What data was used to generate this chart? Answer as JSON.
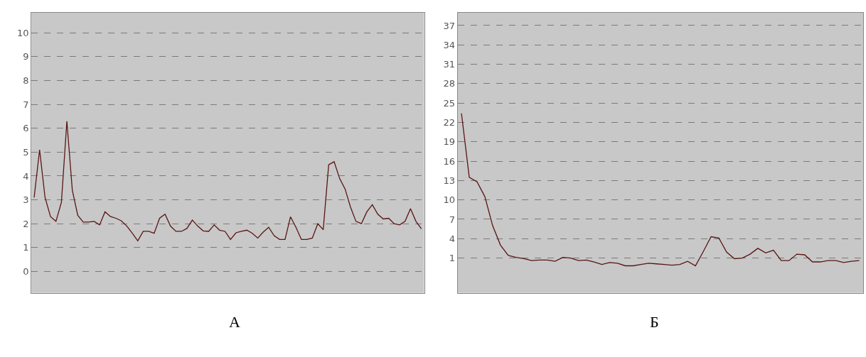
{
  "chart_data": [
    {
      "type": "line",
      "title": "А",
      "color": "#5a1414",
      "ylim": [
        -0.9,
        10.85
      ],
      "yticks": [
        0,
        1,
        2,
        3,
        4,
        5,
        6,
        7,
        8,
        9,
        10
      ],
      "grid": "y",
      "tick_labels": "y",
      "categories": [
        null,
        null,
        null,
        null,
        null,
        null,
        null,
        null,
        null,
        null,
        null,
        null,
        null,
        null,
        null,
        null,
        null,
        null,
        null,
        null,
        null,
        null,
        null,
        null,
        null,
        null,
        null,
        null,
        null,
        null,
        null,
        null,
        null,
        null,
        null,
        null,
        null,
        null,
        null,
        null,
        null,
        null,
        null,
        null,
        null,
        null,
        null,
        null,
        null,
        null,
        null,
        null,
        null,
        null,
        null,
        null,
        null,
        null,
        null,
        null,
        null,
        null,
        null,
        null,
        null,
        null,
        null,
        null,
        null,
        null,
        null,
        null
      ],
      "values": [
        3.1,
        5.1,
        3.1,
        2.3,
        2.1,
        2.9,
        6.3,
        3.4,
        2.35,
        2.07,
        2.07,
        2.1,
        1.95,
        2.5,
        2.3,
        2.23,
        2.12,
        1.9,
        1.6,
        1.28,
        1.68,
        1.68,
        1.6,
        2.23,
        2.4,
        1.9,
        1.68,
        1.68,
        1.8,
        2.15,
        1.9,
        1.7,
        1.68,
        1.95,
        1.73,
        1.68,
        1.34,
        1.62,
        1.68,
        1.73,
        1.6,
        1.4,
        1.65,
        1.85,
        1.5,
        1.34,
        1.34,
        2.29,
        1.85,
        1.34,
        1.34,
        1.4,
        2.0,
        1.75,
        4.47,
        4.6,
        3.9,
        3.46,
        2.7,
        2.1,
        2.0,
        2.5,
        2.8,
        2.4,
        2.2,
        2.23,
        2.0,
        1.95,
        2.1,
        2.63,
        2.1,
        1.79
      ]
    },
    {
      "type": "line",
      "title": "Б",
      "color": "#5a1414",
      "ylim": [
        -4.4,
        39
      ],
      "yticks": [
        1,
        4,
        7,
        10,
        13,
        16,
        19,
        22,
        25,
        28,
        31,
        34,
        37
      ],
      "grid": "y",
      "tick_labels": "y",
      "categories": [
        null,
        null,
        null,
        null,
        null,
        null,
        null,
        null,
        null,
        null,
        null,
        null,
        null,
        null,
        null,
        null,
        null,
        null,
        null,
        null,
        null,
        null,
        null,
        null,
        null,
        null,
        null,
        null,
        null,
        null,
        null,
        null,
        null,
        null,
        null,
        null,
        null,
        null,
        null,
        null,
        null,
        null,
        null,
        null,
        null,
        null,
        null,
        null,
        null,
        null,
        null,
        null
      ],
      "values": [
        23.4,
        13.5,
        12.8,
        10.5,
        6.0,
        3.0,
        1.4,
        1.1,
        0.9,
        0.6,
        0.7,
        0.7,
        0.5,
        1.1,
        1.0,
        0.6,
        0.7,
        0.4,
        0.0,
        0.3,
        0.2,
        -0.2,
        -0.2,
        0.0,
        0.2,
        0.1,
        0.0,
        -0.1,
        0.0,
        0.5,
        -0.2,
        2.0,
        4.3,
        4.1,
        1.9,
        0.9,
        1.0,
        1.6,
        2.5,
        1.8,
        2.2,
        0.6,
        0.6,
        1.6,
        1.5,
        0.4,
        0.4,
        0.6,
        0.6,
        0.3,
        0.5,
        0.6
      ]
    }
  ]
}
